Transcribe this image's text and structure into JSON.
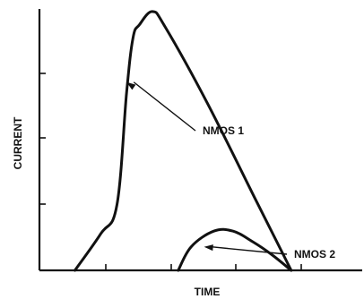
{
  "chart_data": {
    "type": "line",
    "xlabel": "TIME",
    "ylabel": "CURRENT",
    "xlim": [
      0,
      100
    ],
    "ylim": [
      0,
      100
    ],
    "grid": false,
    "series": [
      {
        "name": "NMOS 1",
        "color": "#111111",
        "x": [
          11,
          19,
          24,
          27,
          29,
          31,
          35,
          39,
          52,
          67,
          78
        ],
        "y": [
          0,
          14,
          25,
          68,
          89,
          94,
          99,
          93,
          64,
          27,
          0
        ]
      },
      {
        "name": "NMOS 2",
        "color": "#111111",
        "x": [
          43,
          47,
          54,
          60,
          66,
          72,
          78
        ],
        "y": [
          0,
          9,
          15,
          15,
          11,
          6,
          0
        ]
      }
    ],
    "annotations": [
      {
        "text": "NMOS 1",
        "series": 0,
        "at_x": 27,
        "at_y": 72
      },
      {
        "text": "NMOS 2",
        "series": 1,
        "at_x": 51,
        "at_y": 9
      }
    ]
  }
}
